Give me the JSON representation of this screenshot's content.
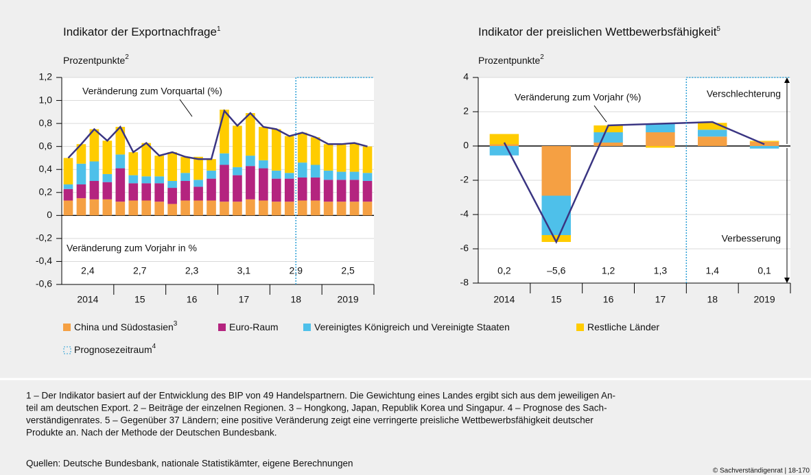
{
  "chart_data": [
    {
      "type": "bar",
      "stacked": true,
      "title": "Indikator der Exportnachfrage",
      "title_note": "1",
      "y_label": "Prozentpunkte",
      "y_label_note": "2",
      "categories": [
        null,
        null,
        null,
        null,
        null,
        null,
        null,
        null,
        null,
        null,
        null,
        null,
        null,
        null,
        null,
        null,
        null,
        null,
        null,
        null,
        null,
        null,
        null,
        null
      ],
      "x_groups": [
        "2014",
        "15",
        "16",
        "17",
        "18",
        "2019"
      ],
      "series": [
        {
          "color": "#f5a043",
          "values": [
            0.13,
            0.15,
            0.14,
            0.14,
            0.12,
            0.13,
            0.13,
            0.12,
            0.1,
            0.13,
            0.13,
            0.13,
            0.12,
            0.12,
            0.14,
            0.13,
            0.12,
            0.12,
            0.13,
            0.13,
            0.12,
            0.12,
            0.12,
            0.12
          ]
        },
        {
          "color": "#b4247f",
          "values": [
            0.1,
            0.12,
            0.16,
            0.15,
            0.29,
            0.15,
            0.15,
            0.16,
            0.14,
            0.17,
            0.12,
            0.19,
            0.32,
            0.23,
            0.29,
            0.28,
            0.2,
            0.2,
            0.2,
            0.2,
            0.19,
            0.19,
            0.19,
            0.18
          ]
        },
        {
          "color": "#4ec0ea",
          "values": [
            0.04,
            0.18,
            0.17,
            0.07,
            0.12,
            0.07,
            0.06,
            0.06,
            0.06,
            0.07,
            0.06,
            0.07,
            0.1,
            0.07,
            0.09,
            0.07,
            0.07,
            0.05,
            0.13,
            0.11,
            0.08,
            0.07,
            0.07,
            0.07
          ]
        },
        {
          "color": "#ffcc00",
          "values": [
            0.23,
            0.17,
            0.28,
            0.29,
            0.24,
            0.2,
            0.29,
            0.18,
            0.25,
            0.14,
            0.2,
            0.1,
            0.38,
            0.36,
            0.37,
            0.29,
            0.36,
            0.32,
            0.26,
            0.24,
            0.23,
            0.24,
            0.25,
            0.23
          ]
        }
      ],
      "line": {
        "color": "#3a3582",
        "values": [
          0.5,
          0.62,
          0.75,
          0.65,
          0.77,
          0.55,
          0.63,
          0.52,
          0.55,
          0.51,
          0.49,
          0.49,
          0.91,
          0.78,
          0.89,
          0.77,
          0.75,
          0.69,
          0.72,
          0.68,
          0.62,
          0.62,
          0.63,
          0.6
        ]
      },
      "annual_changes": [
        {
          "value": 2.4,
          "label": "2,4"
        },
        {
          "value": 2.7,
          "label": "2,7"
        },
        {
          "value": 2.3,
          "label": "2,3"
        },
        {
          "value": 3.1,
          "label": "3,1"
        },
        {
          "value": 2.9,
          "label": "2,9"
        },
        {
          "value": 2.5,
          "label": "2,5"
        }
      ],
      "annotations": [
        "Veränderung zum Vorquartal (%)",
        "Veränderung zum Vorjahr in %"
      ],
      "forecast_start": 18,
      "ylim": [
        -0.6,
        1.2
      ],
      "yticks": [
        {
          "value": 1.2,
          "label": "1,2"
        },
        {
          "value": 1.0,
          "label": "1,0"
        },
        {
          "value": 0.8,
          "label": "0,8"
        },
        {
          "value": 0.6,
          "label": "0,6"
        },
        {
          "value": 0.4,
          "label": "0,4"
        },
        {
          "value": 0.2,
          "label": "0,2"
        },
        0,
        {
          "value": -0.2,
          "label": "-0,2"
        },
        {
          "value": -0.4,
          "label": "-0,4"
        },
        {
          "value": -0.6,
          "label": "-0,6"
        }
      ],
      "grid": true
    },
    {
      "type": "bar",
      "stacked": true,
      "title": "Indikator der preislichen Wettbewerbsfähigkeit",
      "title_note": "5",
      "y_label": "Prozentpunkte",
      "y_label_note": "2",
      "categories": [
        "2014",
        "15",
        "16",
        "17",
        "18",
        "2019"
      ],
      "series": [
        {
          "color": "#f5a043",
          "values": [
            0.1,
            -2.9,
            0.2,
            0.8,
            0.55,
            0.25
          ]
        },
        {
          "color": "#4ec0ea",
          "values": [
            -0.55,
            -2.3,
            0.6,
            0.5,
            0.4,
            -0.15
          ]
        },
        {
          "color": "#ffcc00",
          "values": [
            0.6,
            -0.4,
            0.4,
            -0.1,
            0.4,
            0.05
          ]
        }
      ],
      "line": {
        "color": "#3a3582",
        "values": [
          0.2,
          -5.6,
          1.2,
          1.3,
          1.4,
          0.1
        ],
        "value_labels": [
          "0,2",
          "–5,6",
          "1,2",
          "1,3",
          "1,4",
          "0,1"
        ]
      },
      "annotations": [
        "Veränderung zum Vorjahr (%)",
        "Verschlechterung",
        "Verbesserung"
      ],
      "forecast_start": 4,
      "ylim": [
        -8,
        4
      ],
      "yticks": [
        4,
        2,
        0,
        -2,
        -4,
        -6,
        -8
      ],
      "grid": true
    }
  ],
  "legend": {
    "items": [
      {
        "name": "China und Südostasien",
        "note": "3",
        "color": "#f5a043"
      },
      {
        "name": "Euro-Raum",
        "color": "#b4247f"
      },
      {
        "name": "Vereinigtes Königreich und Vereinigte Staaten",
        "color": "#4ec0ea"
      },
      {
        "name": "Restliche Länder",
        "color": "#ffcc00"
      }
    ],
    "forecast": {
      "name": "Prognosezeitraum",
      "note": "4"
    }
  },
  "footnotes": [
    "1 – Der Indikator basiert auf der Entwicklung des BIP von 49 Handelspartnern. Die Gewichtung eines Landes ergibt sich aus dem jeweiligen An-",
    "teil am deutschen Export.  2 – Beiträge der einzelnen Regionen.  3 – Hongkong, Japan, Republik Korea und Singapur.  4 – Prognose des Sach-",
    "verständigenrates.  5 – Gegenüber 37 Ländern; eine positive Veränderung zeigt eine verringerte preisliche Wettbewerbsfähigkeit deutscher",
    "Produkte an. Nach der Methode der Deutschen Bundesbank."
  ],
  "sources": "Quellen: Deutsche Bundesbank, nationale Statistikämter, eigene Berechnungen",
  "copyright": "© Sachverständigenrat | 18-170"
}
